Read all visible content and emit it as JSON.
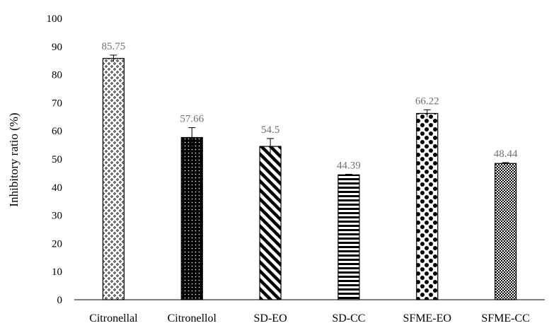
{
  "chart_data": {
    "type": "bar",
    "title": "",
    "xlabel": "",
    "ylabel": "Inhibitory ratio (%)",
    "ylim": [
      0,
      100
    ],
    "yticks": [
      0,
      10,
      20,
      30,
      40,
      50,
      60,
      70,
      80,
      90,
      100
    ],
    "categories": [
      "Citronellal",
      "Citronellol",
      "SD-EO",
      "SD-CC",
      "SFME-EO",
      "SFME-CC"
    ],
    "values": [
      85.75,
      57.66,
      54.5,
      44.39,
      66.22,
      48.44
    ],
    "data_labels": [
      "85.75",
      "57.66",
      "54.5",
      "44.39",
      "66.22",
      "48.44"
    ],
    "errors": [
      1.2,
      3.5,
      2.8,
      0.2,
      1.3,
      0.3
    ],
    "patterns": [
      "dotted-diamonds",
      "dark-dots",
      "diagonal-stripes",
      "horizontal-stripes",
      "large-dots",
      "checkerboard"
    ],
    "grid": false,
    "legend": "none",
    "colors": {
      "bar_edge": "#000000",
      "fill": "#000000",
      "data_label": "#6f6f6f",
      "axis": "#000000"
    }
  }
}
